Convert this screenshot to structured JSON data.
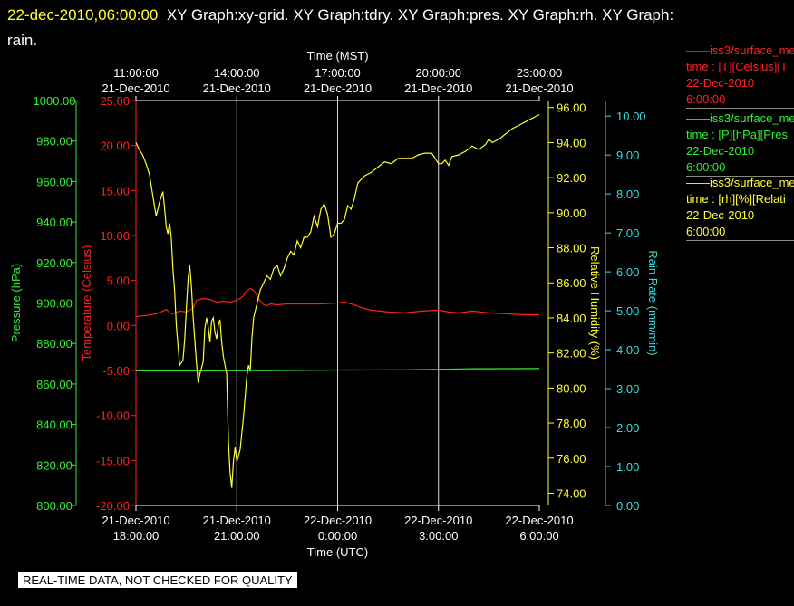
{
  "header": {
    "datetime": "22-dec-2010,06:00:00",
    "graphs": "XY Graph:xy-grid.  XY Graph:tdry.  XY Graph:pres.  XY Graph:rh.  XY Graph:",
    "graphs_cont": "rain."
  },
  "legend": [
    {
      "line1": "——iss3/surface_me",
      "line2": "time : [T][Celsius][T",
      "line3": "22-Dec-2010",
      "line4": "6:00:00",
      "color": "#ff2020"
    },
    {
      "line1": "——iss3/surface_me",
      "line2": "time : [P][hPa][Pres",
      "line3": "22-Dec-2010",
      "line4": "6:00:00",
      "color": "#33ee33"
    },
    {
      "line1": "——iss3/surface_me",
      "line2": "time : [rh][%][Relati",
      "line3": "22-Dec-2010",
      "line4": "6:00:00",
      "color": "#ffff33"
    }
  ],
  "notice": "REAL-TIME DATA, NOT CHECKED FOR QUALITY",
  "chart_data": {
    "type": "line",
    "top_axis": {
      "label": "Time (MST)",
      "ticks": [
        {
          "x": 0.0,
          "l1": "11:00:00",
          "l2": "21-Dec-2010"
        },
        {
          "x": 3.0,
          "l1": "14:00:00",
          "l2": "21-Dec-2010"
        },
        {
          "x": 6.0,
          "l1": "17:00:00",
          "l2": "21-Dec-2010"
        },
        {
          "x": 9.0,
          "l1": "20:00:00",
          "l2": "21-Dec-2010"
        },
        {
          "x": 12.0,
          "l1": "23:00:00",
          "l2": "21-Dec-2010"
        }
      ]
    },
    "bottom_axis": {
      "label": "Time (UTC)",
      "ticks": [
        {
          "x": 0.0,
          "l1": "21-Dec-2010",
          "l2": "18:00:00"
        },
        {
          "x": 3.0,
          "l1": "21-Dec-2010",
          "l2": "21:00:00"
        },
        {
          "x": 6.0,
          "l1": "22-Dec-2010",
          "l2": "0:00:00"
        },
        {
          "x": 9.0,
          "l1": "22-Dec-2010",
          "l2": "3:00:00"
        },
        {
          "x": 12.0,
          "l1": "22-Dec-2010",
          "l2": "6:00:00"
        }
      ]
    },
    "xlim": [
      0,
      12
    ],
    "grid": true,
    "axes": {
      "pres": {
        "label": "Pressure (hPa)",
        "color": "#33ee33",
        "range": [
          800,
          1000
        ],
        "ticks": [
          800,
          820,
          840,
          860,
          880,
          900,
          920,
          940,
          960,
          980,
          1000
        ],
        "fmt": "2"
      },
      "tdry": {
        "label": "Temperature (Celsius)",
        "color": "#ff2020",
        "range": [
          -20,
          25
        ],
        "ticks": [
          -20,
          -15,
          -10,
          -5,
          0,
          5,
          10,
          15,
          20,
          25
        ],
        "fmt": "2"
      },
      "rh": {
        "label": "Relative Humidity (%)",
        "color": "#ffff33",
        "range": [
          73.3,
          96.4
        ],
        "ticks": [
          74,
          76,
          78,
          80,
          82,
          84,
          86,
          88,
          90,
          92,
          94,
          96
        ],
        "fmt": "2"
      },
      "rain": {
        "label": "Rain Rate (mm/min)",
        "color": "#33dddd",
        "range": [
          0,
          10.4
        ],
        "ticks": [
          0,
          1,
          2,
          3,
          4,
          5,
          6,
          7,
          8,
          9,
          10
        ],
        "fmt": "2"
      }
    },
    "series": [
      {
        "axis": "tdry",
        "x": [
          0,
          0.3,
          0.6,
          0.8,
          0.9,
          1.0,
          1.1,
          1.3,
          1.5,
          1.6,
          1.7,
          1.8,
          2.0,
          2.2,
          2.4,
          2.6,
          2.8,
          3.0,
          3.1,
          3.2,
          3.3,
          3.4,
          3.5,
          3.6,
          3.7,
          3.8,
          3.9,
          4.0,
          4.2,
          4.5,
          5.0,
          5.5,
          6.0,
          6.2,
          6.5,
          6.7,
          7.0,
          7.5,
          8.0,
          8.5,
          9.0,
          9.3,
          9.6,
          10.0,
          10.5,
          11.0,
          11.5,
          12.0
        ],
        "y": [
          1.0,
          1.1,
          1.3,
          1.6,
          1.8,
          1.4,
          1.3,
          1.6,
          1.5,
          1.7,
          1.9,
          2.8,
          3.0,
          2.9,
          2.6,
          2.7,
          2.6,
          2.8,
          3.0,
          3.3,
          3.9,
          4.1,
          3.9,
          3.3,
          2.7,
          2.3,
          2.2,
          2.4,
          2.3,
          2.4,
          2.4,
          2.4,
          2.5,
          2.6,
          2.3,
          2.0,
          1.7,
          1.5,
          1.4,
          1.6,
          1.7,
          1.5,
          1.4,
          1.6,
          1.4,
          1.3,
          1.2,
          1.2
        ]
      },
      {
        "axis": "pres",
        "x": [
          0,
          2,
          4,
          6,
          8,
          10,
          12
        ],
        "y": [
          866.5,
          866.5,
          866.6,
          866.9,
          867.0,
          867.5,
          867.6
        ]
      },
      {
        "axis": "rh",
        "x": [
          0,
          0.1,
          0.2,
          0.3,
          0.4,
          0.5,
          0.6,
          0.7,
          0.8,
          0.85,
          0.9,
          0.95,
          1.0,
          1.05,
          1.1,
          1.15,
          1.2,
          1.3,
          1.4,
          1.45,
          1.5,
          1.55,
          1.6,
          1.65,
          1.7,
          1.8,
          1.85,
          1.9,
          2.0,
          2.05,
          2.1,
          2.15,
          2.2,
          2.25,
          2.3,
          2.35,
          2.4,
          2.45,
          2.5,
          2.55,
          2.6,
          2.7,
          2.75,
          2.8,
          2.85,
          2.9,
          2.95,
          3.0,
          3.1,
          3.2,
          3.3,
          3.35,
          3.4,
          3.45,
          3.5,
          3.55,
          3.6,
          3.7,
          3.8,
          3.9,
          4.0,
          4.1,
          4.2,
          4.3,
          4.4,
          4.5,
          4.6,
          4.7,
          4.8,
          4.9,
          5.0,
          5.1,
          5.2,
          5.3,
          5.4,
          5.5,
          5.6,
          5.7,
          5.8,
          5.9,
          6.0,
          6.1,
          6.2,
          6.3,
          6.4,
          6.5,
          6.6,
          6.8,
          7.0,
          7.2,
          7.4,
          7.6,
          7.8,
          8.0,
          8.2,
          8.4,
          8.6,
          8.8,
          9.0,
          9.1,
          9.2,
          9.3,
          9.4,
          9.6,
          9.8,
          10.0,
          10.2,
          10.4,
          10.5,
          10.6,
          10.8,
          11.0,
          11.2,
          11.4,
          11.6,
          11.8,
          12.0
        ],
        "y": [
          94.0,
          93.6,
          93.3,
          92.8,
          92.2,
          91.0,
          89.8,
          90.6,
          91.2,
          90.3,
          89.2,
          88.8,
          89.4,
          88.6,
          86.8,
          85.6,
          83.6,
          81.3,
          81.6,
          82.8,
          84.5,
          86.2,
          87.0,
          85.8,
          84.1,
          81.4,
          80.3,
          80.8,
          81.5,
          83.4,
          84.0,
          83.5,
          82.6,
          83.8,
          84.0,
          83.2,
          82.8,
          83.6,
          83.9,
          82.6,
          81.8,
          80.8,
          77.0,
          75.2,
          74.3,
          75.8,
          76.6,
          75.8,
          76.5,
          78.4,
          80.7,
          81.3,
          81.0,
          82.8,
          84.0,
          84.4,
          84.8,
          85.6,
          86.0,
          86.4,
          86.2,
          86.8,
          87.0,
          86.4,
          86.8,
          87.4,
          87.8,
          87.6,
          88.4,
          88.0,
          88.6,
          88.6,
          88.9,
          89.8,
          89.2,
          90.2,
          90.5,
          89.9,
          88.6,
          88.8,
          89.4,
          89.4,
          89.6,
          90.4,
          90.2,
          90.8,
          91.7,
          92.1,
          92.3,
          92.6,
          92.9,
          92.8,
          93.1,
          93.1,
          93.1,
          93.3,
          93.4,
          93.4,
          92.8,
          92.8,
          93.0,
          92.7,
          93.2,
          93.3,
          93.5,
          93.8,
          93.6,
          93.9,
          94.2,
          94.0,
          94.2,
          94.5,
          94.8,
          95.0,
          95.2,
          95.4,
          95.6
        ]
      }
    ]
  }
}
